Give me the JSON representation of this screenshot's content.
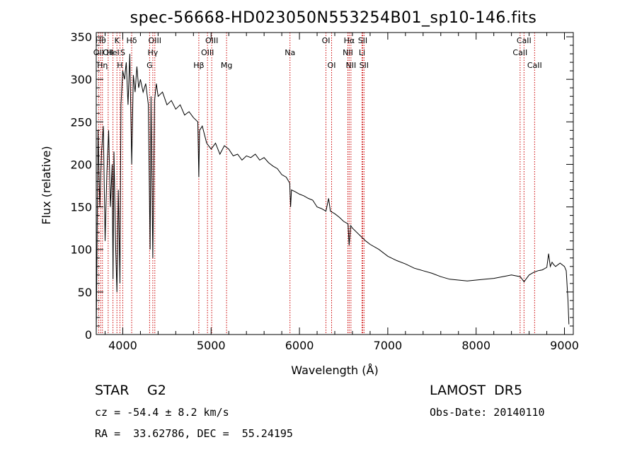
{
  "chart_data": {
    "type": "line",
    "title": "spec-56668-HD023050N553254B01_sp10-146.fits",
    "xlabel": "Wavelength (Å)",
    "ylabel": "Flux (relative)",
    "xlim": [
      3700,
      9100
    ],
    "ylim": [
      0,
      355
    ],
    "xticks": [
      4000,
      5000,
      6000,
      7000,
      8000,
      9000
    ],
    "yticks": [
      0,
      50,
      100,
      150,
      200,
      250,
      300,
      350
    ],
    "grid": false,
    "series": [
      {
        "x": [
          3700,
          3720,
          3740,
          3760,
          3780,
          3800,
          3820,
          3840,
          3860,
          3880,
          3890,
          3900,
          3920,
          3934,
          3950,
          3968,
          3980,
          4000,
          4020,
          4040,
          4060,
          4080,
          4101,
          4120,
          4140,
          4160,
          4180,
          4200,
          4230,
          4260,
          4290,
          4310,
          4320,
          4340,
          4360,
          4380,
          4400,
          4450,
          4500,
          4550,
          4600,
          4650,
          4700,
          4750,
          4800,
          4850,
          4861,
          4870,
          4900,
          4950,
          5000,
          5050,
          5100,
          5150,
          5200,
          5250,
          5300,
          5350,
          5400,
          5450,
          5500,
          5550,
          5600,
          5650,
          5700,
          5750,
          5800,
          5850,
          5890,
          5900,
          5910,
          5950,
          6000,
          6050,
          6100,
          6150,
          6200,
          6250,
          6300,
          6330,
          6350,
          6400,
          6450,
          6500,
          6550,
          6563,
          6580,
          6600,
          6650,
          6700,
          6750,
          6800,
          6900,
          7000,
          7100,
          7200,
          7300,
          7400,
          7500,
          7600,
          7700,
          7800,
          7900,
          8000,
          8100,
          8200,
          8300,
          8400,
          8500,
          8542,
          8600,
          8650,
          8700,
          8750,
          8800,
          8820,
          8840,
          8860,
          8880,
          8900,
          8950,
          9000,
          9020,
          9040,
          9050
        ],
        "y": [
          0,
          240,
          150,
          215,
          245,
          110,
          190,
          240,
          150,
          200,
          65,
          215,
          100,
          50,
          170,
          60,
          270,
          310,
          300,
          320,
          270,
          330,
          200,
          305,
          285,
          315,
          290,
          300,
          285,
          295,
          270,
          100,
          280,
          90,
          275,
          295,
          280,
          285,
          270,
          275,
          265,
          270,
          258,
          262,
          255,
          250,
          185,
          240,
          245,
          225,
          218,
          225,
          212,
          222,
          218,
          210,
          212,
          205,
          210,
          208,
          212,
          205,
          208,
          202,
          198,
          195,
          188,
          185,
          178,
          150,
          170,
          168,
          165,
          163,
          160,
          158,
          150,
          148,
          145,
          160,
          145,
          142,
          138,
          133,
          130,
          105,
          128,
          125,
          120,
          115,
          110,
          106,
          100,
          92,
          87,
          83,
          78,
          75,
          72,
          68,
          65,
          64,
          63,
          64,
          65,
          66,
          68,
          70,
          68,
          62,
          70,
          73,
          75,
          76,
          79,
          95,
          80,
          85,
          82,
          80,
          84,
          80,
          75,
          40,
          12
        ]
      }
    ],
    "spectral_lines": [
      {
        "x": 3727,
        "label": "OII",
        "row": 2
      },
      {
        "x": 3750,
        "label": "Hθ",
        "row": 1
      },
      {
        "x": 3770,
        "label": "Hη",
        "row": 3
      },
      {
        "x": 3835,
        "label": "OII",
        "row": 2
      },
      {
        "x": 3889,
        "label": "HeI",
        "row": 2
      },
      {
        "x": 3934,
        "label": "K",
        "row": 1
      },
      {
        "x": 3968,
        "label": "H",
        "row": 3
      },
      {
        "x": 4000,
        "label": "S",
        "row": 2
      },
      {
        "x": 4101,
        "label": "Hδ",
        "row": 1
      },
      {
        "x": 4304,
        "label": "G",
        "row": 3
      },
      {
        "x": 4340,
        "label": "Hγ",
        "row": 2
      },
      {
        "x": 4363,
        "label": "OIII",
        "row": 1
      },
      {
        "x": 4861,
        "label": "Hβ",
        "row": 3
      },
      {
        "x": 4959,
        "label": "OIII",
        "row": 2
      },
      {
        "x": 5007,
        "label": "OIII",
        "row": 1
      },
      {
        "x": 5175,
        "label": "Mg",
        "row": 3
      },
      {
        "x": 5893,
        "label": "Na",
        "row": 2
      },
      {
        "x": 6300,
        "label": "OI",
        "row": 1
      },
      {
        "x": 6364,
        "label": "OI",
        "row": 3
      },
      {
        "x": 6548,
        "label": "NII",
        "row": 2
      },
      {
        "x": 6563,
        "label": "Hα",
        "row": 1
      },
      {
        "x": 6583,
        "label": "NII",
        "row": 3
      },
      {
        "x": 6708,
        "label": "Li",
        "row": 2
      },
      {
        "x": 6716,
        "label": "SII",
        "row": 1
      },
      {
        "x": 6731,
        "label": "SII",
        "row": 3
      },
      {
        "x": 8498,
        "label": "CaII",
        "row": 2
      },
      {
        "x": 8542,
        "label": "CaII",
        "row": 1
      },
      {
        "x": 8662,
        "label": "CaII",
        "row": 3
      }
    ],
    "line_color": "#000000",
    "marker_color": "#cc0000"
  },
  "info": {
    "star_label": "STAR",
    "spectral_class": "G2",
    "survey": "LAMOST  DR5",
    "cz": "cz = -54.4 ± 8.2 km/s",
    "obs_date": "Obs-Date: 20140110",
    "coords": "RA =  33.62786, DEC =  55.24195"
  }
}
